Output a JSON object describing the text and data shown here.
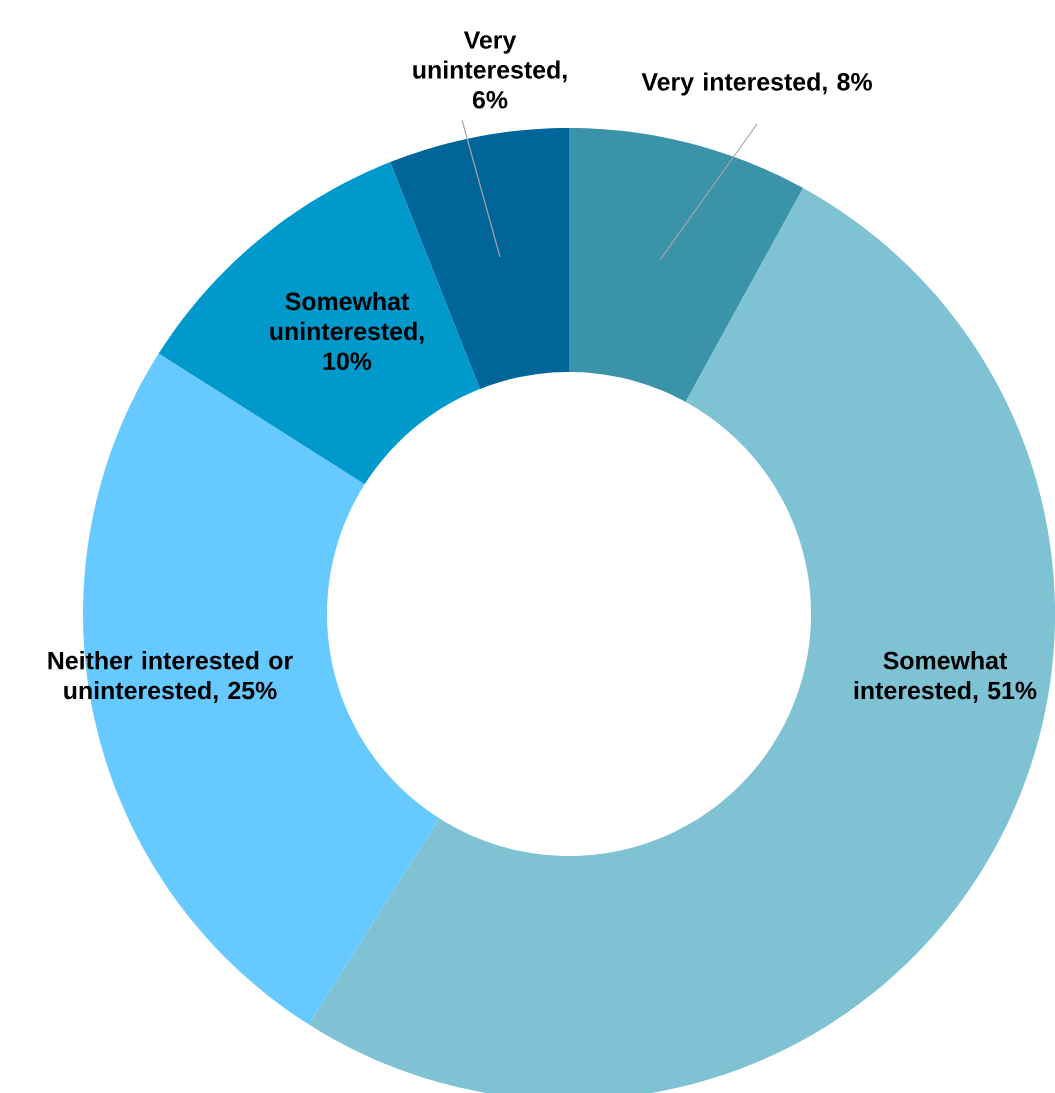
{
  "chart_data": {
    "type": "donut",
    "categories": [
      "Very interested",
      "Somewhat interested",
      "Neither interested or uninterested",
      "Somewhat uninterested",
      "Very uninterested"
    ],
    "values": [
      8,
      51,
      25,
      10,
      6
    ],
    "colors": [
      "#3a93a8",
      "#7fc2d4",
      "#66c9ff",
      "#0099cc",
      "#006699"
    ],
    "value_labels": [
      ", 8%",
      ", 51%",
      ", 25%",
      ", 10%",
      ", 6%"
    ]
  }
}
